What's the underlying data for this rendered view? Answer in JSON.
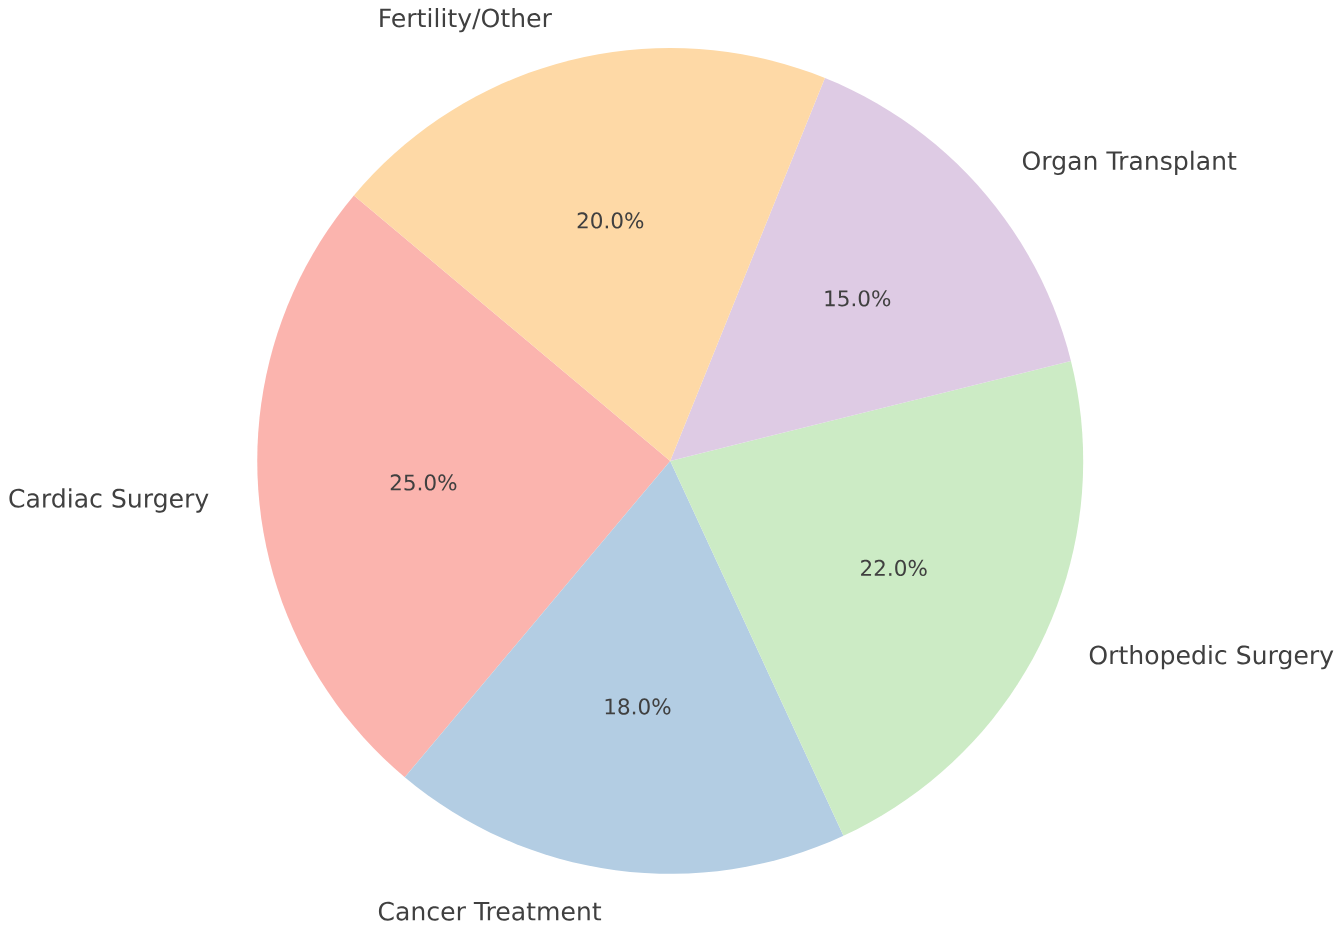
{
  "chart_data": {
    "type": "pie",
    "categories": [
      "Cardiac Surgery",
      "Cancer Treatment",
      "Orthopedic Surgery",
      "Organ Transplant",
      "Fertility/Other"
    ],
    "values": [
      25,
      18,
      22,
      15,
      20
    ],
    "colors": [
      "#fbb4ae",
      "#b3cde3",
      "#ccebc5",
      "#decbe4",
      "#fed9a6"
    ],
    "value_labels": [
      "25.0%",
      "18.0%",
      "22.0%",
      "15.0%",
      "20.0%"
    ]
  }
}
